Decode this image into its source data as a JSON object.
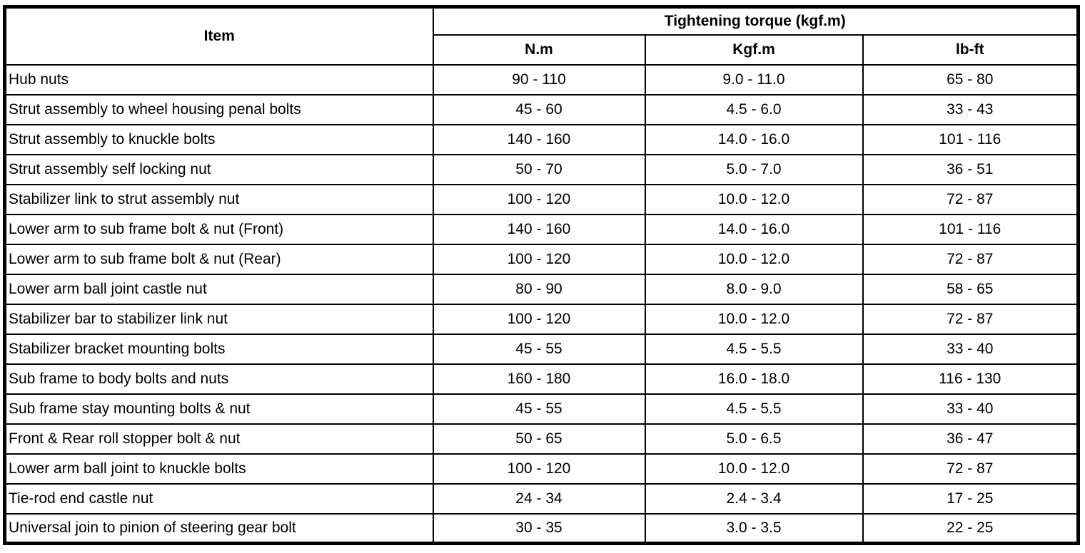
{
  "table": {
    "item_header": "Item",
    "torque_header": "Tightening torque (kgf.m)",
    "unit_headers": {
      "nm": "N.m",
      "kgfm": "Kgf.m",
      "lbft": "lb-ft"
    },
    "colors": {
      "border": "#000000",
      "background": "#ffffff",
      "text": "#000000"
    },
    "rows": [
      {
        "item": "Hub nuts",
        "nm": "90 - 110",
        "kgfm": "9.0 - 11.0",
        "lbft": "65 - 80"
      },
      {
        "item": "Strut assembly to wheel housing penal bolts",
        "nm": "45 - 60",
        "kgfm": "4.5 - 6.0",
        "lbft": "33 - 43"
      },
      {
        "item": "Strut assembly to knuckle bolts",
        "nm": "140 - 160",
        "kgfm": "14.0 - 16.0",
        "lbft": "101 - 116"
      },
      {
        "item": "Strut assembly self locking nut",
        "nm": "50 - 70",
        "kgfm": "5.0 - 7.0",
        "lbft": "36 - 51"
      },
      {
        "item": "Stabilizer link to strut assembly nut",
        "nm": "100 - 120",
        "kgfm": "10.0 - 12.0",
        "lbft": "72 - 87"
      },
      {
        "item": "Lower arm to sub frame bolt & nut (Front)",
        "nm": "140 - 160",
        "kgfm": "14.0 - 16.0",
        "lbft": "101 - 116"
      },
      {
        "item": "Lower arm to sub frame bolt & nut (Rear)",
        "nm": "100 - 120",
        "kgfm": "10.0 - 12.0",
        "lbft": "72 - 87"
      },
      {
        "item": "Lower arm ball joint castle nut",
        "nm": "80 - 90",
        "kgfm": "8.0 - 9.0",
        "lbft": "58 - 65"
      },
      {
        "item": "Stabilizer bar to stabilizer link nut",
        "nm": "100 - 120",
        "kgfm": "10.0 - 12.0",
        "lbft": "72 - 87"
      },
      {
        "item": "Stabilizer bracket mounting bolts",
        "nm": "45 - 55",
        "kgfm": "4.5 - 5.5",
        "lbft": "33 - 40"
      },
      {
        "item": "Sub frame to body bolts and nuts",
        "nm": "160 - 180",
        "kgfm": "16.0 - 18.0",
        "lbft": "116 - 130"
      },
      {
        "item": "Sub frame stay mounting bolts & nut",
        "nm": "45 - 55",
        "kgfm": "4.5 - 5.5",
        "lbft": "33 - 40"
      },
      {
        "item": "Front & Rear roll stopper bolt & nut",
        "nm": "50 - 65",
        "kgfm": "5.0 - 6.5",
        "lbft": "36 - 47"
      },
      {
        "item": "Lower arm ball joint to knuckle bolts",
        "nm": "100 - 120",
        "kgfm": "10.0 - 12.0",
        "lbft": "72 - 87"
      },
      {
        "item": "Tie-rod end castle nut",
        "nm": "24 - 34",
        "kgfm": "2.4 - 3.4",
        "lbft": "17 - 25"
      },
      {
        "item": "Universal join to pinion of steering gear bolt",
        "nm": "30 - 35",
        "kgfm": "3.0 - 3.5",
        "lbft": "22 - 25"
      }
    ]
  }
}
